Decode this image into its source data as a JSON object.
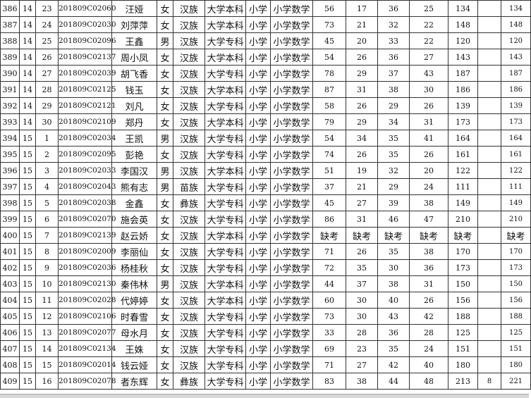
{
  "table": {
    "rows": [
      [
        "386",
        "14",
        "23",
        "201809C02060",
        "汪娅",
        "女",
        "汉族",
        "大学本科",
        "小学",
        "小学数学",
        "56",
        "17",
        "36",
        "25",
        "134",
        "",
        "134"
      ],
      [
        "387",
        "14",
        "24",
        "201809C02030",
        "刘萍萍",
        "女",
        "汉族",
        "大学本科",
        "小学",
        "小学数学",
        "73",
        "21",
        "32",
        "22",
        "148",
        "",
        "148"
      ],
      [
        "388",
        "14",
        "25",
        "201809C02096",
        "王鑫",
        "男",
        "汉族",
        "大学专科",
        "小学",
        "小学数学",
        "45",
        "20",
        "33",
        "22",
        "120",
        "",
        "120"
      ],
      [
        "389",
        "14",
        "26",
        "201809C02137",
        "周小凤",
        "女",
        "汉族",
        "大学本科",
        "小学",
        "小学数学",
        "54",
        "26",
        "36",
        "27",
        "143",
        "",
        "143"
      ],
      [
        "390",
        "14",
        "27",
        "201809C02039",
        "胡飞香",
        "女",
        "汉族",
        "大学专科",
        "小学",
        "小学数学",
        "78",
        "29",
        "37",
        "43",
        "187",
        "",
        "187"
      ],
      [
        "391",
        "14",
        "28",
        "201809C02125",
        "钱玉",
        "女",
        "汉族",
        "大学本科",
        "小学",
        "小学数学",
        "87",
        "31",
        "38",
        "30",
        "186",
        "",
        "186"
      ],
      [
        "392",
        "14",
        "29",
        "201809C02121",
        "刘凡",
        "女",
        "汉族",
        "大学专科",
        "小学",
        "小学数学",
        "58",
        "26",
        "29",
        "26",
        "139",
        "",
        "139"
      ],
      [
        "393",
        "14",
        "30",
        "201809C02109",
        "郑丹",
        "女",
        "汉族",
        "大学本科",
        "小学",
        "小学数学",
        "79",
        "29",
        "34",
        "31",
        "173",
        "",
        "173"
      ],
      [
        "394",
        "15",
        "1",
        "201809C02034",
        "王凯",
        "男",
        "汉族",
        "大学专科",
        "小学",
        "小学数学",
        "54",
        "34",
        "35",
        "41",
        "164",
        "",
        "164"
      ],
      [
        "395",
        "15",
        "2",
        "201809C02095",
        "彭艳",
        "女",
        "汉族",
        "大学专科",
        "小学",
        "小学数学",
        "74",
        "26",
        "35",
        "26",
        "161",
        "",
        "161"
      ],
      [
        "396",
        "15",
        "3",
        "201809C02033",
        "李国汉",
        "男",
        "汉族",
        "大学本科",
        "小学",
        "小学数学",
        "51",
        "19",
        "32",
        "20",
        "122",
        "",
        "122"
      ],
      [
        "397",
        "15",
        "4",
        "201809C02043",
        "熊有志",
        "男",
        "苗族",
        "大学专科",
        "小学",
        "小学数学",
        "37",
        "21",
        "29",
        "24",
        "111",
        "",
        "111"
      ],
      [
        "398",
        "15",
        "5",
        "201809C02038",
        "金鑫",
        "女",
        "彝族",
        "大学专科",
        "小学",
        "小学数学",
        "45",
        "27",
        "39",
        "38",
        "149",
        "",
        "149"
      ],
      [
        "399",
        "15",
        "6",
        "201809C02070",
        "施会英",
        "女",
        "汉族",
        "大学专科",
        "小学",
        "小学数学",
        "86",
        "31",
        "46",
        "47",
        "210",
        "",
        "210"
      ],
      [
        "400",
        "15",
        "7",
        "201809C02139",
        "赵云娇",
        "女",
        "汉族",
        "大学本科",
        "小学",
        "小学数学",
        "缺考",
        "缺考",
        "缺考",
        "缺考",
        "缺考",
        "",
        "缺考"
      ],
      [
        "401",
        "15",
        "8",
        "201809C02009",
        "李丽仙",
        "女",
        "汉族",
        "大学专科",
        "小学",
        "小学数学",
        "71",
        "26",
        "35",
        "38",
        "170",
        "",
        "170"
      ],
      [
        "402",
        "15",
        "9",
        "201809C02036",
        "杨桂秋",
        "女",
        "汉族",
        "大学专科",
        "小学",
        "小学数学",
        "72",
        "35",
        "30",
        "36",
        "173",
        "",
        "173"
      ],
      [
        "403",
        "15",
        "10",
        "201809C02130",
        "秦伟林",
        "男",
        "汉族",
        "大学本科",
        "小学",
        "小学数学",
        "44",
        "37",
        "38",
        "31",
        "150",
        "",
        "150"
      ],
      [
        "404",
        "15",
        "11",
        "201809C02028",
        "代婷婷",
        "女",
        "汉族",
        "大学本科",
        "小学",
        "小学数学",
        "60",
        "30",
        "40",
        "26",
        "156",
        "",
        "156"
      ],
      [
        "405",
        "15",
        "12",
        "201809C02106",
        "时春雪",
        "女",
        "汉族",
        "大学专科",
        "小学",
        "小学数学",
        "73",
        "30",
        "43",
        "42",
        "188",
        "",
        "188"
      ],
      [
        "406",
        "15",
        "13",
        "201809C02077",
        "母水月",
        "女",
        "汉族",
        "大学专科",
        "小学",
        "小学数学",
        "33",
        "28",
        "36",
        "28",
        "125",
        "",
        "125"
      ],
      [
        "407",
        "15",
        "14",
        "201809C02134",
        "王姝",
        "女",
        "汉族",
        "大学专科",
        "小学",
        "小学数学",
        "69",
        "23",
        "35",
        "24",
        "151",
        "",
        "151"
      ],
      [
        "408",
        "15",
        "15",
        "201809C02014",
        "钱云娅",
        "女",
        "汉族",
        "大学专科",
        "小学",
        "小学数学",
        "71",
        "27",
        "42",
        "40",
        "180",
        "",
        "180"
      ],
      [
        "409",
        "15",
        "16",
        "201809C02078",
        "者东辉",
        "女",
        "彝族",
        "大学专科",
        "小学",
        "小学数学",
        "83",
        "38",
        "44",
        "48",
        "213",
        "8",
        "221"
      ]
    ]
  }
}
